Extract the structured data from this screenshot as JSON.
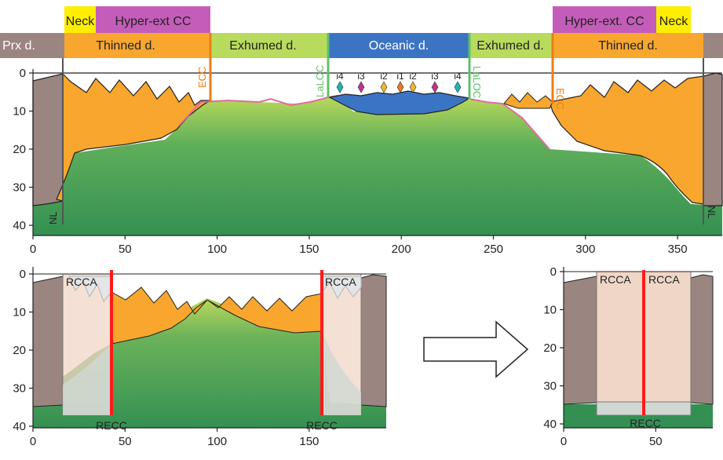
{
  "colors": {
    "prox": "#9b8580",
    "neck": "#ffee00",
    "hyper": "#c45db9",
    "thinned": "#f8a62e",
    "exhumed": "#b8db5e",
    "oceanic": "#3c74c4",
    "mantle": "#349052",
    "mantle_light": "#bad95a",
    "ecc": "#f07c14",
    "laloc": "#5dc26a",
    "recc": "#ff1a1a",
    "rcca": "#f0d6c6",
    "peridotite_line": "#e26b9e"
  },
  "domains_top": [
    {
      "key": "prox",
      "label": "Prx d."
    },
    {
      "key": "thinned_left",
      "label": "Thinned d."
    },
    {
      "key": "exhumed_left",
      "label": "Exhumed d."
    },
    {
      "key": "oceanic",
      "label": "Oceanic d."
    },
    {
      "key": "exhumed_right",
      "label": "Exhumed d."
    },
    {
      "key": "thinned_right",
      "label": "Thinned d."
    }
  ],
  "labels_above": {
    "neck_left": "Neck",
    "hyper_left": "Hyper-ext CC",
    "hyper_right": "Hyper-ext. CC",
    "neck_right": "Neck"
  },
  "boundary_labels": {
    "ecc": "ECC",
    "laloc": "LaLOC",
    "nl": "NL"
  },
  "ocean_markers": [
    {
      "label": "i4",
      "color": "#1ab5b5"
    },
    {
      "label": "i3",
      "color": "#c2338e"
    },
    {
      "label": "i2",
      "color": "#e8b82e"
    },
    {
      "label": "i1",
      "color": "#e87a2e"
    },
    {
      "label": "i2",
      "color": "#e8b82e"
    },
    {
      "label": "i3",
      "color": "#c2338e"
    },
    {
      "label": "i4",
      "color": "#1ab5b5"
    }
  ],
  "panel_top": {
    "x_ticks": [
      "0",
      "50",
      "100",
      "150",
      "200",
      "250",
      "300",
      "350"
    ],
    "y_ticks": [
      "0",
      "10",
      "20",
      "30",
      "40"
    ]
  },
  "panel_bl": {
    "x_ticks": [
      "0",
      "50",
      "100",
      "150"
    ],
    "y_ticks": [
      "0",
      "10",
      "20",
      "30",
      "40"
    ],
    "rcca": "RCCA",
    "recc": "RECC"
  },
  "panel_br": {
    "x_ticks": [
      "0",
      "50"
    ],
    "y_ticks": [
      "0",
      "10",
      "20",
      "30",
      "40"
    ],
    "rcca_left": "RCCA",
    "rcca_right": "RCCA",
    "recc": "RECC"
  }
}
